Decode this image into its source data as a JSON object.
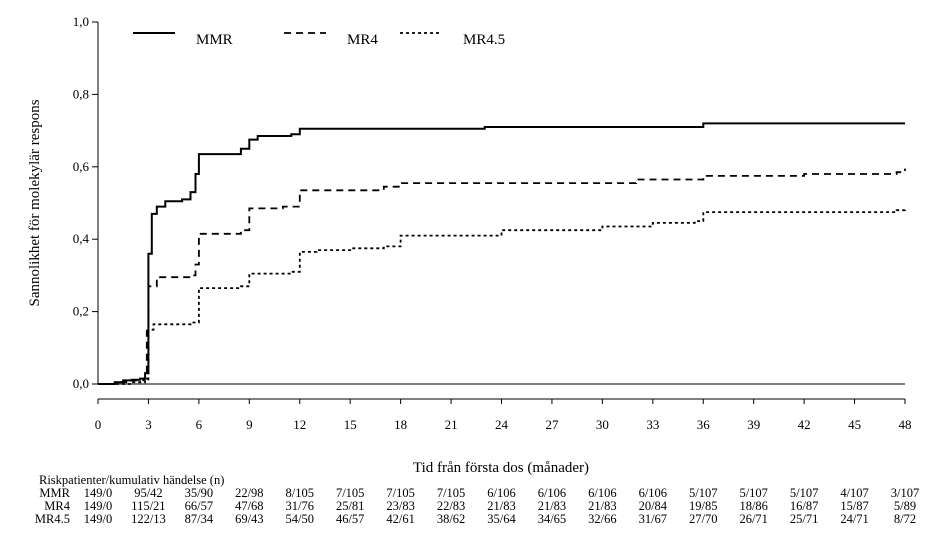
{
  "chart_data": {
    "type": "line",
    "step": true,
    "xlabel": "Tid från första dos (månader)",
    "ylabel": "Sannolikhet för molekylär respons",
    "xlim": [
      0,
      48
    ],
    "ylim": [
      0,
      1.0
    ],
    "x_ticks": [
      "0",
      "3",
      "6",
      "9",
      "12",
      "15",
      "18",
      "21",
      "24",
      "27",
      "30",
      "33",
      "36",
      "39",
      "42",
      "45",
      "48"
    ],
    "y_ticks": [
      "0,0",
      "0,2",
      "0,4",
      "0,6",
      "0,8",
      "1,0"
    ],
    "grid": false,
    "legend_position": "top",
    "series": [
      {
        "name": "MMR",
        "style": "solid",
        "color": "#000000",
        "points": [
          [
            0,
            0
          ],
          [
            1,
            0.005
          ],
          [
            1.5,
            0.01
          ],
          [
            2,
            0.012
          ],
          [
            2.5,
            0.015
          ],
          [
            2.8,
            0.03
          ],
          [
            3,
            0.36
          ],
          [
            3.2,
            0.47
          ],
          [
            3.5,
            0.49
          ],
          [
            4,
            0.505
          ],
          [
            5,
            0.51
          ],
          [
            5.5,
            0.53
          ],
          [
            5.8,
            0.58
          ],
          [
            6,
            0.635
          ],
          [
            8.5,
            0.65
          ],
          [
            9,
            0.675
          ],
          [
            9.5,
            0.685
          ],
          [
            11.5,
            0.69
          ],
          [
            12,
            0.705
          ],
          [
            23,
            0.71
          ],
          [
            36,
            0.72
          ],
          [
            48,
            0.72
          ]
        ]
      },
      {
        "name": "MR4",
        "style": "dashed",
        "color": "#000000",
        "points": [
          [
            0,
            0
          ],
          [
            1,
            0.005
          ],
          [
            2,
            0.01
          ],
          [
            2.7,
            0.015
          ],
          [
            2.9,
            0.16
          ],
          [
            3,
            0.27
          ],
          [
            3.5,
            0.295
          ],
          [
            5.5,
            0.3
          ],
          [
            5.8,
            0.33
          ],
          [
            6,
            0.415
          ],
          [
            8.5,
            0.425
          ],
          [
            9,
            0.485
          ],
          [
            11,
            0.49
          ],
          [
            12,
            0.535
          ],
          [
            17,
            0.545
          ],
          [
            18,
            0.555
          ],
          [
            31,
            0.555
          ],
          [
            32,
            0.565
          ],
          [
            36,
            0.575
          ],
          [
            42,
            0.58
          ],
          [
            47.5,
            0.585
          ],
          [
            48,
            0.595
          ]
        ]
      },
      {
        "name": "MR4.5",
        "style": "dotted",
        "color": "#000000",
        "points": [
          [
            0,
            0
          ],
          [
            2,
            0.005
          ],
          [
            2.8,
            0.01
          ],
          [
            3,
            0.15
          ],
          [
            3.3,
            0.165
          ],
          [
            5.5,
            0.17
          ],
          [
            6,
            0.265
          ],
          [
            8.5,
            0.27
          ],
          [
            9,
            0.305
          ],
          [
            11.5,
            0.31
          ],
          [
            12,
            0.365
          ],
          [
            13,
            0.37
          ],
          [
            15,
            0.375
          ],
          [
            17,
            0.38
          ],
          [
            18,
            0.41
          ],
          [
            24,
            0.425
          ],
          [
            30,
            0.435
          ],
          [
            33,
            0.445
          ],
          [
            35.5,
            0.45
          ],
          [
            36,
            0.475
          ],
          [
            47.5,
            0.48
          ],
          [
            48,
            0.485
          ]
        ]
      }
    ]
  },
  "risk_table": {
    "title": "Riskpatienter/kumulativ händelse (n)",
    "rows": [
      {
        "label": "MMR",
        "values": [
          "149/0",
          "95/42",
          "35/90",
          "22/98",
          "8/105",
          "7/105",
          "7/105",
          "7/105",
          "6/106",
          "6/106",
          "6/106",
          "6/106",
          "5/107",
          "5/107",
          "5/107",
          "4/107",
          "3/107"
        ]
      },
      {
        "label": "MR4",
        "values": [
          "149/0",
          "115/21",
          "66/57",
          "47/68",
          "31/76",
          "25/81",
          "23/83",
          "22/83",
          "21/83",
          "21/83",
          "21/83",
          "20/84",
          "19/85",
          "18/86",
          "16/87",
          "15/87",
          "5/89"
        ]
      },
      {
        "label": "MR4.5",
        "values": [
          "149/0",
          "122/13",
          "87/34",
          "69/43",
          "54/50",
          "46/57",
          "42/61",
          "38/62",
          "35/64",
          "34/65",
          "32/66",
          "31/67",
          "27/70",
          "26/71",
          "25/71",
          "24/71",
          "8/72"
        ]
      }
    ]
  }
}
